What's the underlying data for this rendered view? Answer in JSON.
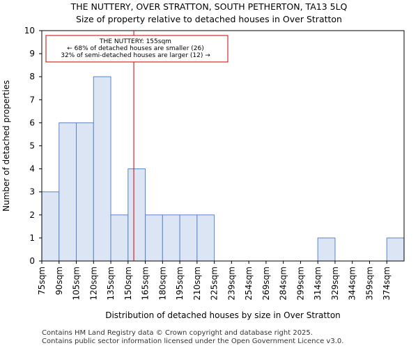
{
  "title": "THE NUTTERY, OVER STRATTON, SOUTH PETHERTON, TA13 5LQ",
  "subtitle": "Size of property relative to detached houses in Over Stratton",
  "footer_line1": "Contains HM Land Registry data © Crown copyright and database right 2025.",
  "footer_line2": "Contains public sector information licensed under the Open Government Licence v3.0.",
  "colors": {
    "bar_fill": "#dbe5f4",
    "bar_stroke": "#5b84c4",
    "marker": "#cc0000"
  },
  "chart_data": {
    "type": "bar",
    "title": "THE NUTTERY, OVER STRATTON, SOUTH PETHERTON, TA13 5LQ",
    "subtitle": "Size of property relative to detached houses in Over Stratton",
    "xlabel": "Distribution of detached houses by size in Over Stratton",
    "ylabel": "Number of detached properties",
    "categories": [
      "75sqm",
      "90sqm",
      "105sqm",
      "120sqm",
      "135sqm",
      "150sqm",
      "165sqm",
      "180sqm",
      "195sqm",
      "210sqm",
      "225sqm",
      "239sqm",
      "254sqm",
      "269sqm",
      "284sqm",
      "299sqm",
      "314sqm",
      "329sqm",
      "344sqm",
      "359sqm",
      "374sqm"
    ],
    "values": [
      3,
      6,
      6,
      8,
      2,
      4,
      2,
      2,
      2,
      2,
      0,
      0,
      0,
      0,
      0,
      0,
      1,
      0,
      0,
      0,
      1
    ],
    "ylim": [
      0,
      10
    ],
    "yticks": [
      0,
      1,
      2,
      3,
      4,
      5,
      6,
      7,
      8,
      9,
      10
    ],
    "grid": false,
    "property_marker": {
      "value_sqm": 155
    },
    "annotation": {
      "line1": "THE NUTTERY: 155sqm",
      "line2": "← 68% of detached houses are smaller (26)",
      "line3": "32% of semi-detached houses are larger (12) →"
    }
  }
}
